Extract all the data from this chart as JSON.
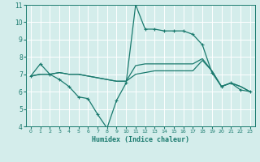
{
  "bg_color": "#d4edeb",
  "grid_color": "#ffffff",
  "line_color": "#1a7a6e",
  "xlabel": "Humidex (Indice chaleur)",
  "xlim": [
    -0.5,
    23.5
  ],
  "ylim": [
    4,
    11
  ],
  "yticks": [
    4,
    5,
    6,
    7,
    8,
    9,
    10,
    11
  ],
  "xticks": [
    0,
    1,
    2,
    3,
    4,
    5,
    6,
    7,
    8,
    9,
    10,
    11,
    12,
    13,
    14,
    15,
    16,
    17,
    18,
    19,
    20,
    21,
    22,
    23
  ],
  "line1": {
    "x": [
      0,
      1,
      2,
      3,
      4,
      5,
      6,
      7,
      8,
      9,
      10,
      11,
      12,
      13,
      14,
      15,
      16,
      17,
      18,
      19,
      20,
      21,
      22,
      23
    ],
    "y": [
      6.9,
      7.6,
      7.0,
      6.7,
      6.3,
      5.7,
      5.6,
      4.7,
      3.9,
      5.5,
      6.5,
      11.0,
      9.6,
      9.6,
      9.5,
      9.5,
      9.5,
      9.3,
      8.7,
      7.1,
      6.3,
      6.5,
      6.1,
      6.0
    ]
  },
  "line2": {
    "x": [
      0,
      1,
      2,
      3,
      4,
      5,
      6,
      7,
      8,
      9,
      10,
      11,
      12,
      13,
      14,
      15,
      16,
      17,
      18,
      19,
      20,
      21,
      22,
      23
    ],
    "y": [
      6.9,
      7.0,
      7.0,
      7.1,
      7.0,
      7.0,
      6.9,
      6.8,
      6.7,
      6.6,
      6.6,
      7.0,
      7.1,
      7.2,
      7.2,
      7.2,
      7.2,
      7.2,
      7.8,
      7.2,
      6.3,
      6.5,
      6.3,
      6.0
    ]
  },
  "line3": {
    "x": [
      0,
      1,
      2,
      3,
      4,
      5,
      6,
      7,
      8,
      9,
      10,
      11,
      12,
      13,
      14,
      15,
      16,
      17,
      18,
      19,
      20,
      21,
      22,
      23
    ],
    "y": [
      6.9,
      7.0,
      7.0,
      7.1,
      7.0,
      7.0,
      6.9,
      6.8,
      6.7,
      6.6,
      6.6,
      7.5,
      7.6,
      7.6,
      7.6,
      7.6,
      7.6,
      7.6,
      7.9,
      7.2,
      6.3,
      6.5,
      6.3,
      6.0
    ]
  }
}
